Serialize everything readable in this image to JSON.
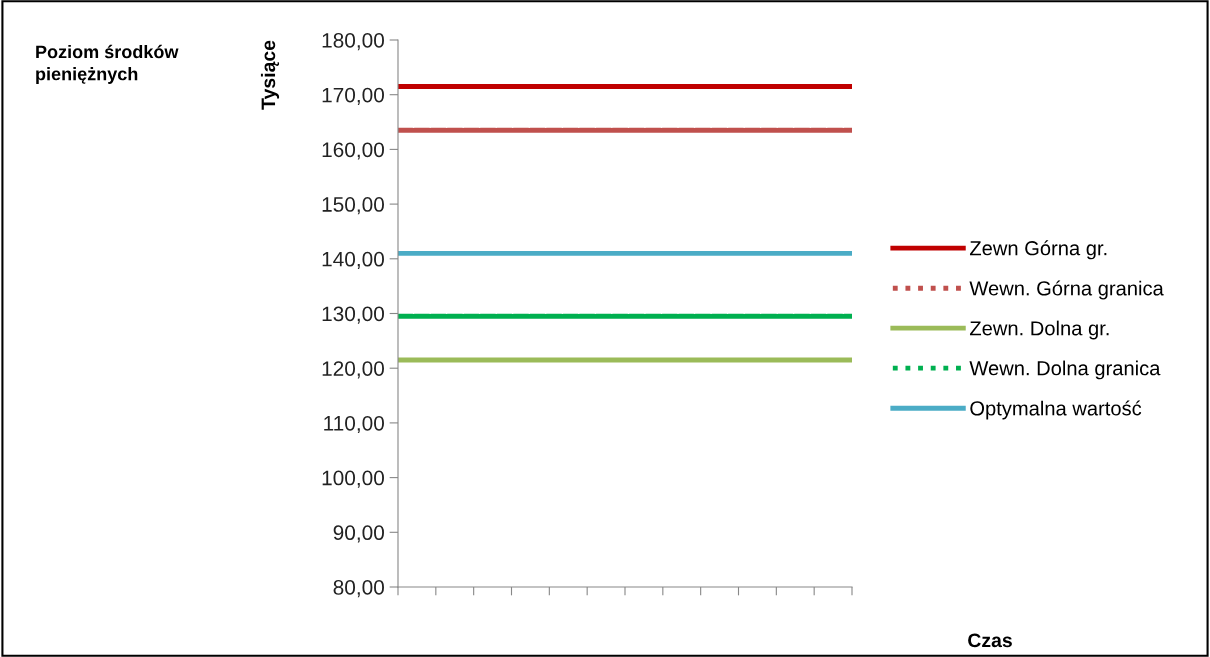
{
  "chart_data": {
    "type": "line",
    "title": "Poziom środków pieniężnych",
    "ylabel": "Tysiące",
    "annotations": [
      "Czas"
    ],
    "categories": [
      null,
      null,
      null,
      null,
      null,
      null,
      null,
      null,
      null,
      null,
      null,
      null,
      null
    ],
    "series": [
      {
        "name": "Zewn Górna gr.",
        "color": "#c00000",
        "line_style": "solid",
        "values": [
          171.5,
          171.5,
          171.5,
          171.5,
          171.5,
          171.5,
          171.5,
          171.5,
          171.5,
          171.5,
          171.5,
          171.5,
          171.5
        ]
      },
      {
        "name": "Wewn. Górna granica",
        "color": "#c0504d",
        "line_style": "dotted",
        "values": [
          163.5,
          163.5,
          163.5,
          163.5,
          163.5,
          163.5,
          163.5,
          163.5,
          163.5,
          163.5,
          163.5,
          163.5,
          163.5
        ]
      },
      {
        "name": "Zewn. Dolna gr.",
        "color": "#9bbb59",
        "line_style": "solid",
        "values": [
          121.5,
          121.5,
          121.5,
          121.5,
          121.5,
          121.5,
          121.5,
          121.5,
          121.5,
          121.5,
          121.5,
          121.5,
          121.5
        ]
      },
      {
        "name": "Wewn. Dolna granica",
        "color": "#00b050",
        "line_style": "dotted",
        "values": [
          129.5,
          129.5,
          129.5,
          129.5,
          129.5,
          129.5,
          129.5,
          129.5,
          129.5,
          129.5,
          129.5,
          129.5,
          129.5
        ]
      },
      {
        "name": "Optymalna wartość",
        "color": "#4bacc6",
        "line_style": "solid",
        "values": [
          141,
          141,
          141,
          141,
          141,
          141,
          141,
          141,
          141,
          141,
          141,
          141,
          141
        ]
      }
    ],
    "ylim": [
      80,
      180
    ],
    "yticks": [
      {
        "value": 80,
        "label": "80,00"
      },
      {
        "value": 90,
        "label": "90,00"
      },
      {
        "value": 100,
        "label": "100,00"
      },
      {
        "value": 110,
        "label": "110,00"
      },
      {
        "value": 120,
        "label": "120,00"
      },
      {
        "value": 130,
        "label": "130,00"
      },
      {
        "value": 140,
        "label": "140,00"
      },
      {
        "value": 150,
        "label": "150,00"
      },
      {
        "value": 160,
        "label": "160,00"
      },
      {
        "value": 170,
        "label": "170,00"
      },
      {
        "value": 180,
        "label": "180,00"
      }
    ],
    "tick_labels": "y",
    "grid": false,
    "legend": "right",
    "marker": "none"
  }
}
